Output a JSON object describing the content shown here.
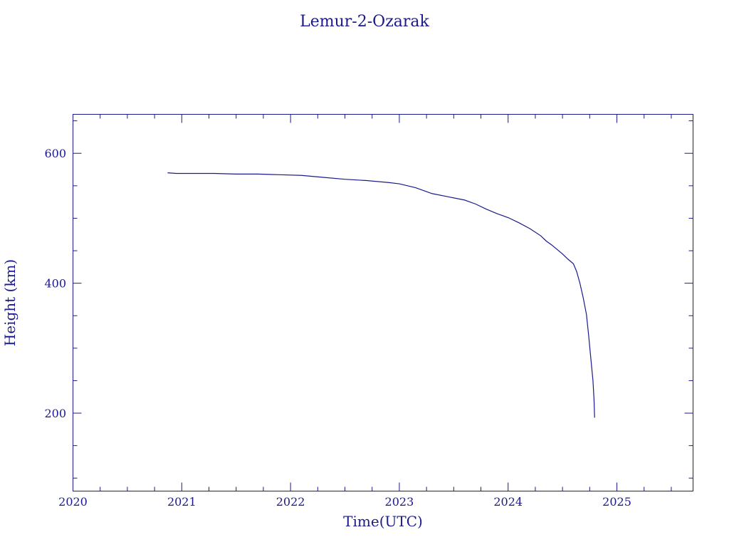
{
  "chart_data": {
    "type": "line",
    "title": "Lemur-2-Ozarak",
    "xlabel": "Time(UTC)",
    "ylabel": "Height (km)",
    "xlim": [
      2020.0,
      2025.7
    ],
    "ylim": [
      80,
      660
    ],
    "x_ticks": [
      2020,
      2021,
      2022,
      2023,
      2024,
      2025
    ],
    "x_tick_labels": [
      "2020",
      "2021",
      "2022",
      "2023",
      "2024",
      "2025"
    ],
    "y_ticks": [
      200,
      400,
      600
    ],
    "y_tick_labels": [
      "200",
      "400",
      "600"
    ],
    "grid": false,
    "legend": "none",
    "color": "#1a1a8c",
    "series": [
      {
        "x": [
          2020.87,
          2020.95,
          2021.1,
          2021.3,
          2021.5,
          2021.7,
          2021.9,
          2022.1,
          2022.3,
          2022.5,
          2022.7,
          2022.9,
          2023.0,
          2023.15,
          2023.3,
          2023.45,
          2023.6,
          2023.7,
          2023.8,
          2023.9,
          2024.0,
          2024.1,
          2024.2,
          2024.3,
          2024.35,
          2024.4,
          2024.45,
          2024.5,
          2024.55,
          2024.6,
          2024.63,
          2024.66,
          2024.69,
          2024.72,
          2024.74,
          2024.76,
          2024.78,
          2024.79,
          2024.795
        ],
        "y": [
          570,
          569,
          569,
          569,
          568,
          568,
          567,
          566,
          563,
          560,
          558,
          555,
          553,
          547,
          538,
          533,
          528,
          522,
          514,
          507,
          501,
          493,
          484,
          473,
          465,
          459,
          452,
          445,
          437,
          430,
          418,
          400,
          378,
          352,
          320,
          285,
          250,
          220,
          193
        ]
      }
    ]
  }
}
